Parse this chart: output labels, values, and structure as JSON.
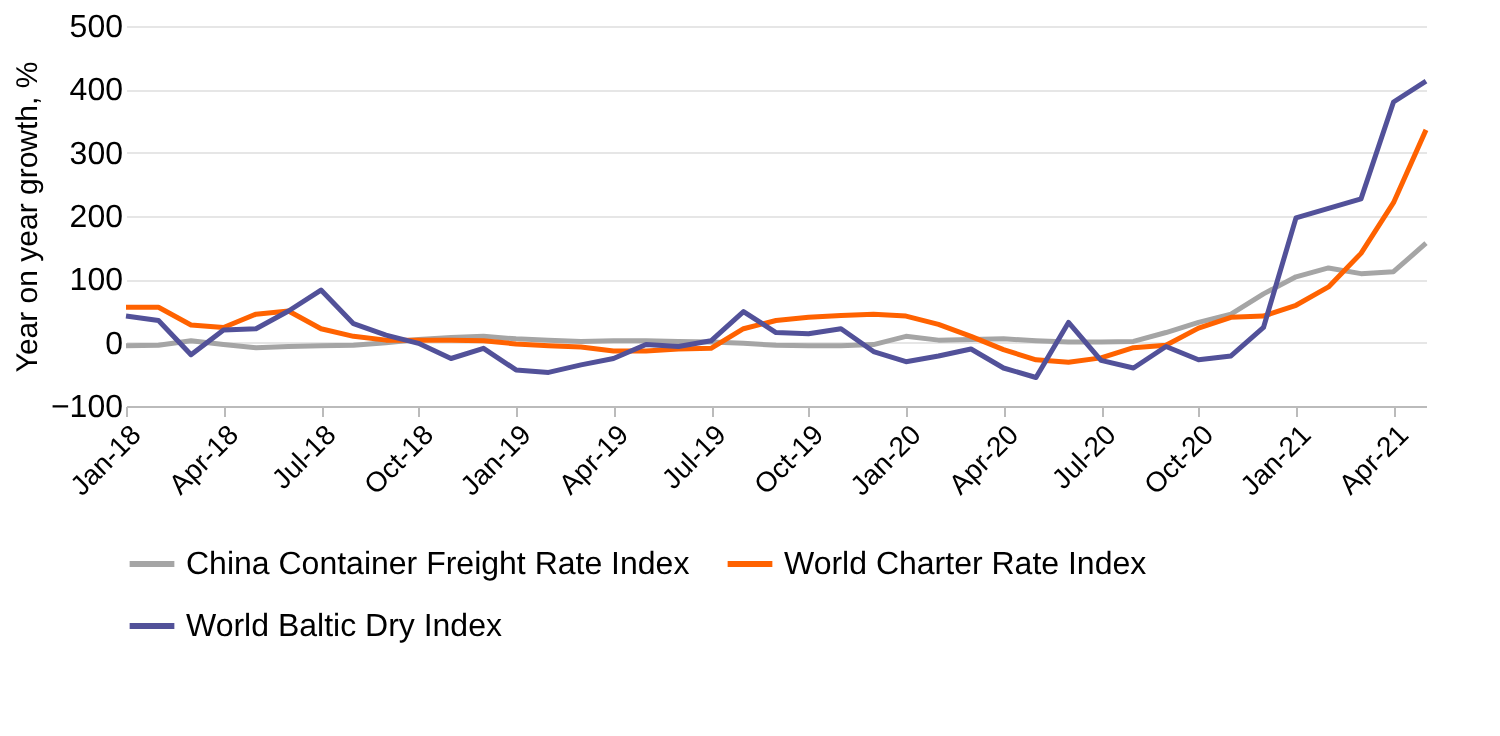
{
  "chart_data": {
    "type": "line",
    "ylabel": "Year on year growth, %",
    "ylim": [
      -100,
      500
    ],
    "yticks": [
      -100,
      0,
      100,
      200,
      300,
      400,
      500
    ],
    "grid": "y",
    "legend": "bottom",
    "line_style": "solid",
    "marker": "none",
    "categories": [
      "Jan-18",
      null,
      null,
      "Apr-18",
      null,
      null,
      "Jul-18",
      null,
      null,
      "Oct-18",
      null,
      null,
      "Jan-19",
      null,
      null,
      "Apr-19",
      null,
      null,
      "Jul-19",
      null,
      null,
      "Oct-19",
      null,
      null,
      "Jan-20",
      null,
      null,
      "Apr-20",
      null,
      null,
      "Jul-20",
      null,
      null,
      "Oct-20",
      null,
      null,
      "Jan-21",
      null,
      null,
      "Apr-21",
      null
    ],
    "series": [
      {
        "name": "China Container Freight Rate Index",
        "color": "#a5a5a5",
        "values": [
          -5,
          -4,
          3,
          -3,
          -8,
          -6,
          -5,
          -4,
          0,
          5,
          8,
          10,
          6,
          4,
          2,
          3,
          3,
          2,
          1,
          -1,
          -4,
          -5,
          -5,
          -3,
          10,
          4,
          5,
          6,
          3,
          1,
          1,
          2,
          16,
          32,
          45,
          77,
          104,
          118,
          109,
          112,
          157
        ]
      },
      {
        "name": "World Charter Rate Index",
        "color": "#ff6200",
        "values": [
          56,
          56,
          28,
          24,
          45,
          50,
          22,
          10,
          4,
          4,
          4,
          3,
          -2,
          -5,
          -7,
          -13,
          -13,
          -10,
          -9,
          22,
          35,
          40,
          43,
          45,
          42,
          29,
          10,
          -11,
          -27,
          -31,
          -24,
          -8,
          -4,
          23,
          40,
          42,
          59,
          88,
          141,
          221,
          336
        ]
      },
      {
        "name": "World Baltic Dry Index",
        "color": "#525199",
        "values": [
          42,
          35,
          -19,
          20,
          22,
          50,
          83,
          30,
          12,
          -1,
          -25,
          -9,
          -43,
          -47,
          -35,
          -25,
          -3,
          -6,
          3,
          49,
          16,
          14,
          22,
          -14,
          -30,
          -21,
          -10,
          -40,
          -55,
          32,
          -28,
          -40,
          -6,
          -27,
          -21,
          24,
          197,
          212,
          227,
          380,
          413
        ]
      }
    ]
  }
}
